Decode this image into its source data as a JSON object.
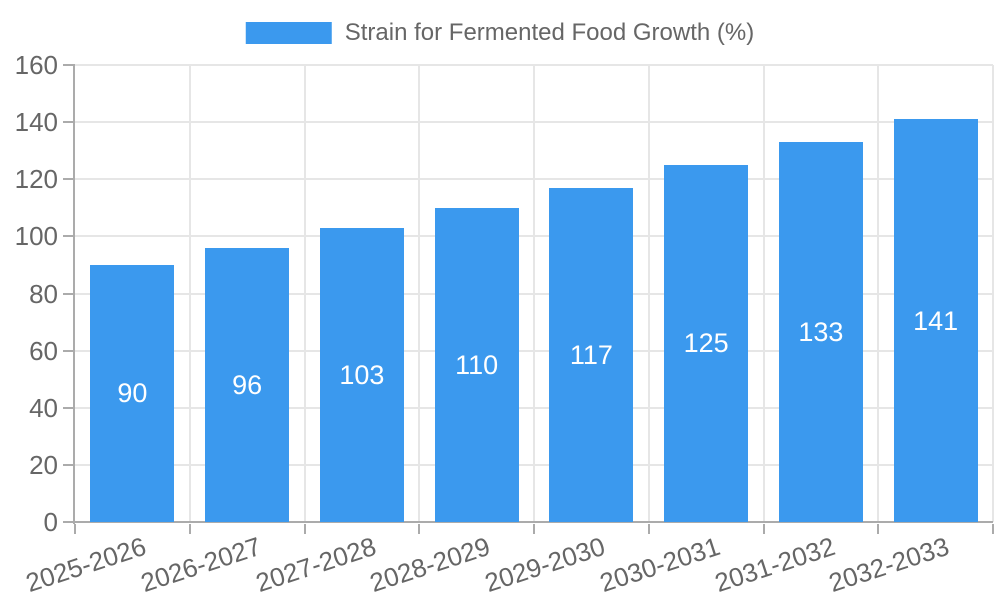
{
  "chart_data": {
    "type": "bar",
    "title": "Strain for Fermented Food Growth (%)",
    "legend": {
      "label": "Strain for Fermented Food Growth (%)",
      "position": "top-center"
    },
    "categories": [
      "2025-2026",
      "2026-2027",
      "2027-2028",
      "2028-2029",
      "2029-2030",
      "2030-2031",
      "2031-2032",
      "2032-2033"
    ],
    "values": [
      90,
      96,
      103,
      110,
      117,
      125,
      133,
      141
    ],
    "xlabel": "",
    "ylabel": "",
    "ylim": [
      0,
      160
    ],
    "yticks": [
      0,
      20,
      40,
      60,
      80,
      100,
      120,
      140,
      160
    ],
    "grid": true,
    "value_labels": "inside-center",
    "colors": {
      "bar": "#3B99EE",
      "value_label": "#FFFFFF",
      "axis_text": "#666666",
      "gridline": "#E6E6E6",
      "axis_line": "#ABABAB"
    }
  }
}
